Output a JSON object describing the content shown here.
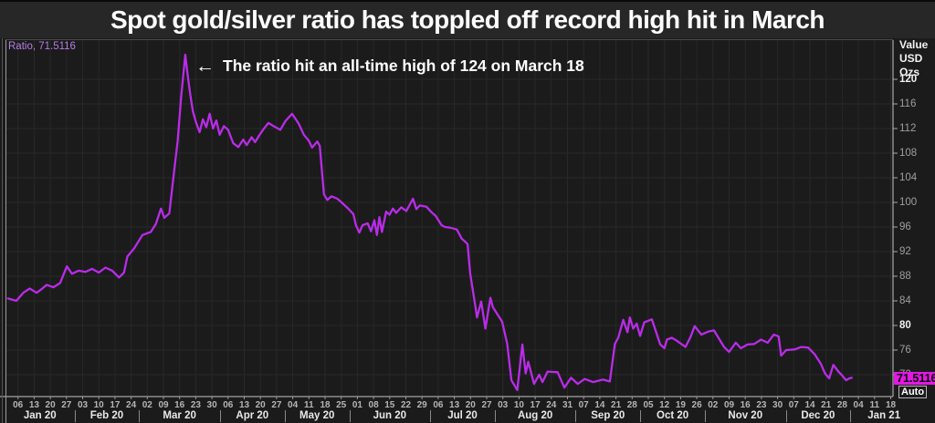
{
  "title": "Spot gold/silver ratio has toppled off record high hit in March",
  "chart": {
    "series_label": "Ratio, 71.5116",
    "annotation": {
      "arrow": "←",
      "text": "The ratio hit an all-time high of 124 on March 18"
    },
    "value_axis_header": [
      "Value",
      "USD",
      "Ozs"
    ],
    "last_value_badge": "71.5116",
    "auto_label": "Auto"
  },
  "colors": {
    "line": "#b92ce8",
    "badge_bg": "#e318e3",
    "series_label_text": "#b77ce6",
    "plot_bg": "#1b1b1b",
    "titlebar_bg": "#272727",
    "grid": "#282828",
    "axis_line": "#c4c4c4",
    "tick_text": "#9f9f9f",
    "tick_text_bold": "#f0f0f0"
  },
  "chart_data": {
    "type": "line",
    "title": "Spot gold/silver ratio has toppled off record high hit in March",
    "x_axis": {
      "unit": "weeks since first tick (Jan 06 2020), weekly ticks",
      "day_tick_labels": [
        "06",
        "13",
        "20",
        "27",
        "03",
        "10",
        "17",
        "24",
        "02",
        "09",
        "16",
        "23",
        "30",
        "06",
        "13",
        "20",
        "27",
        "04",
        "11",
        "18",
        "25",
        "01",
        "08",
        "15",
        "22",
        "29",
        "06",
        "13",
        "20",
        "27",
        "03",
        "10",
        "17",
        "24",
        "31",
        "07",
        "14",
        "21",
        "28",
        "05",
        "12",
        "19",
        "26",
        "02",
        "09",
        "16",
        "23",
        "30",
        "07",
        "14",
        "21",
        "28",
        "04",
        "11",
        "18"
      ],
      "months": [
        {
          "label": "Jan 20",
          "weeks": 4
        },
        {
          "label": "Feb 20",
          "weeks": 4
        },
        {
          "label": "Mar 20",
          "weeks": 5
        },
        {
          "label": "Apr 20",
          "weeks": 4
        },
        {
          "label": "May 20",
          "weeks": 4
        },
        {
          "label": "Jun 20",
          "weeks": 5
        },
        {
          "label": "Jul 20",
          "weeks": 4
        },
        {
          "label": "Aug 20",
          "weeks": 5
        },
        {
          "label": "Sep 20",
          "weeks": 4
        },
        {
          "label": "Oct 20",
          "weeks": 4
        },
        {
          "label": "Nov 20",
          "weeks": 5
        },
        {
          "label": "Dec 20",
          "weeks": 4
        },
        {
          "label": "Jan 21",
          "weeks": 3
        }
      ]
    },
    "y_axis": {
      "ticks": [
        120,
        116,
        112,
        108,
        104,
        100,
        96,
        92,
        88,
        84,
        80,
        76,
        72
      ],
      "bold_ticks": [
        120,
        80
      ]
    },
    "ylim": [
      68,
      126
    ],
    "legend_position": "top-left",
    "grid": true,
    "last_value": 71.5116,
    "peak": {
      "value": 124,
      "date": "March 18"
    },
    "series": [
      {
        "name": "Spot gold/silver ratio",
        "points": [
          [
            -0.62,
            84.4
          ],
          [
            -0.1,
            84.0
          ],
          [
            0.32,
            85.3
          ],
          [
            0.73,
            86.0
          ],
          [
            1.15,
            85.3
          ],
          [
            1.46,
            85.9
          ],
          [
            1.77,
            86.6
          ],
          [
            2.19,
            86.2
          ],
          [
            2.61,
            86.9
          ],
          [
            3.02,
            89.6
          ],
          [
            3.34,
            88.4
          ],
          [
            3.75,
            88.9
          ],
          [
            4.17,
            88.7
          ],
          [
            4.58,
            89.2
          ],
          [
            5.0,
            88.6
          ],
          [
            5.41,
            89.4
          ],
          [
            5.83,
            88.9
          ],
          [
            6.25,
            87.8
          ],
          [
            6.56,
            88.6
          ],
          [
            6.77,
            91.2
          ],
          [
            7.18,
            92.5
          ],
          [
            7.7,
            94.7
          ],
          [
            8.22,
            95.2
          ],
          [
            8.53,
            96.5
          ],
          [
            8.85,
            99.0
          ],
          [
            9.05,
            97.5
          ],
          [
            9.36,
            98.2
          ],
          [
            9.57,
            103.0
          ],
          [
            9.88,
            110.0
          ],
          [
            10.09,
            117.0
          ],
          [
            10.35,
            124.0
          ],
          [
            10.51,
            120.5
          ],
          [
            10.66,
            117.5
          ],
          [
            10.82,
            114.8
          ],
          [
            11.03,
            112.9
          ],
          [
            11.24,
            111.4
          ],
          [
            11.44,
            113.5
          ],
          [
            11.65,
            112.2
          ],
          [
            11.86,
            114.4
          ],
          [
            12.07,
            112.0
          ],
          [
            12.27,
            113.3
          ],
          [
            12.48,
            111.0
          ],
          [
            12.74,
            112.4
          ],
          [
            13.0,
            111.8
          ],
          [
            13.32,
            109.6
          ],
          [
            13.63,
            109.0
          ],
          [
            13.94,
            110.2
          ],
          [
            14.15,
            109.3
          ],
          [
            14.46,
            110.6
          ],
          [
            14.67,
            109.8
          ],
          [
            14.93,
            110.9
          ],
          [
            15.19,
            111.9
          ],
          [
            15.5,
            112.9
          ],
          [
            15.81,
            112.4
          ],
          [
            16.23,
            111.8
          ],
          [
            16.54,
            113.2
          ],
          [
            16.96,
            114.4
          ],
          [
            17.37,
            112.8
          ],
          [
            17.69,
            111.0
          ],
          [
            18.0,
            110.0
          ],
          [
            18.2,
            108.9
          ],
          [
            18.52,
            109.9
          ],
          [
            18.67,
            109.2
          ],
          [
            18.93,
            101.3
          ],
          [
            19.14,
            100.4
          ],
          [
            19.4,
            101.0
          ],
          [
            19.76,
            100.6
          ],
          [
            20.02,
            100.0
          ],
          [
            20.39,
            99.1
          ],
          [
            20.75,
            98.1
          ],
          [
            20.91,
            96.3
          ],
          [
            21.12,
            95.1
          ],
          [
            21.32,
            96.3
          ],
          [
            21.64,
            96.6
          ],
          [
            21.84,
            95.3
          ],
          [
            22.05,
            97.1
          ],
          [
            22.21,
            94.7
          ],
          [
            22.36,
            97.6
          ],
          [
            22.52,
            95.2
          ],
          [
            22.78,
            98.5
          ],
          [
            22.99,
            98.0
          ],
          [
            23.2,
            99.0
          ],
          [
            23.4,
            98.3
          ],
          [
            23.72,
            99.2
          ],
          [
            24.03,
            98.6
          ],
          [
            24.44,
            100.6
          ],
          [
            24.65,
            98.9
          ],
          [
            24.86,
            99.5
          ],
          [
            25.27,
            99.3
          ],
          [
            25.59,
            98.4
          ],
          [
            25.85,
            97.8
          ],
          [
            26.21,
            96.3
          ],
          [
            26.42,
            96.0
          ],
          [
            26.73,
            95.9
          ],
          [
            27.15,
            95.6
          ],
          [
            27.46,
            94.1
          ],
          [
            27.72,
            93.5
          ],
          [
            27.82,
            93.2
          ],
          [
            27.98,
            88.5
          ],
          [
            28.29,
            83.3
          ],
          [
            28.4,
            81.3
          ],
          [
            28.66,
            83.9
          ],
          [
            28.92,
            79.5
          ],
          [
            29.23,
            84.5
          ],
          [
            29.38,
            83.0
          ],
          [
            29.96,
            80.6
          ],
          [
            30.27,
            77.0
          ],
          [
            30.53,
            71.1
          ],
          [
            30.89,
            69.5
          ],
          [
            31.21,
            76.9
          ],
          [
            31.41,
            72.2
          ],
          [
            31.57,
            74.1
          ],
          [
            31.93,
            70.5
          ],
          [
            32.25,
            72.0
          ],
          [
            32.45,
            70.8
          ],
          [
            32.77,
            72.5
          ],
          [
            33.39,
            72.4
          ],
          [
            33.81,
            69.9
          ],
          [
            34.22,
            71.5
          ],
          [
            34.64,
            70.5
          ],
          [
            35.06,
            71.3
          ],
          [
            35.58,
            70.8
          ],
          [
            36.2,
            71.2
          ],
          [
            36.62,
            70.9
          ],
          [
            36.93,
            77.0
          ],
          [
            37.14,
            78.0
          ],
          [
            37.45,
            80.9
          ],
          [
            37.71,
            78.9
          ],
          [
            37.86,
            81.3
          ],
          [
            38.07,
            79.5
          ],
          [
            38.28,
            80.3
          ],
          [
            38.49,
            78.3
          ],
          [
            38.75,
            80.5
          ],
          [
            39.22,
            81.0
          ],
          [
            39.74,
            76.9
          ],
          [
            40.0,
            76.3
          ],
          [
            40.15,
            77.7
          ],
          [
            40.46,
            78.0
          ],
          [
            40.72,
            77.6
          ],
          [
            41.3,
            76.5
          ],
          [
            41.61,
            78.1
          ],
          [
            41.87,
            79.9
          ],
          [
            42.28,
            78.5
          ],
          [
            42.7,
            79.0
          ],
          [
            43.06,
            79.2
          ],
          [
            43.69,
            76.5
          ],
          [
            44.0,
            75.7
          ],
          [
            44.41,
            77.2
          ],
          [
            44.73,
            76.3
          ],
          [
            45.14,
            76.9
          ],
          [
            45.56,
            77.0
          ],
          [
            45.97,
            77.7
          ],
          [
            46.39,
            77.2
          ],
          [
            46.76,
            78.5
          ],
          [
            47.07,
            78.2
          ],
          [
            47.22,
            75.1
          ],
          [
            47.53,
            76.0
          ],
          [
            48.06,
            76.1
          ],
          [
            48.47,
            76.5
          ],
          [
            48.89,
            76.4
          ],
          [
            49.3,
            75.3
          ],
          [
            49.67,
            73.8
          ],
          [
            49.93,
            72.2
          ],
          [
            50.19,
            71.4
          ],
          [
            50.45,
            73.6
          ],
          [
            50.76,
            72.5
          ],
          [
            51.02,
            71.8
          ],
          [
            51.23,
            71.1
          ],
          [
            51.44,
            71.4
          ],
          [
            51.59,
            71.5
          ]
        ]
      }
    ]
  }
}
